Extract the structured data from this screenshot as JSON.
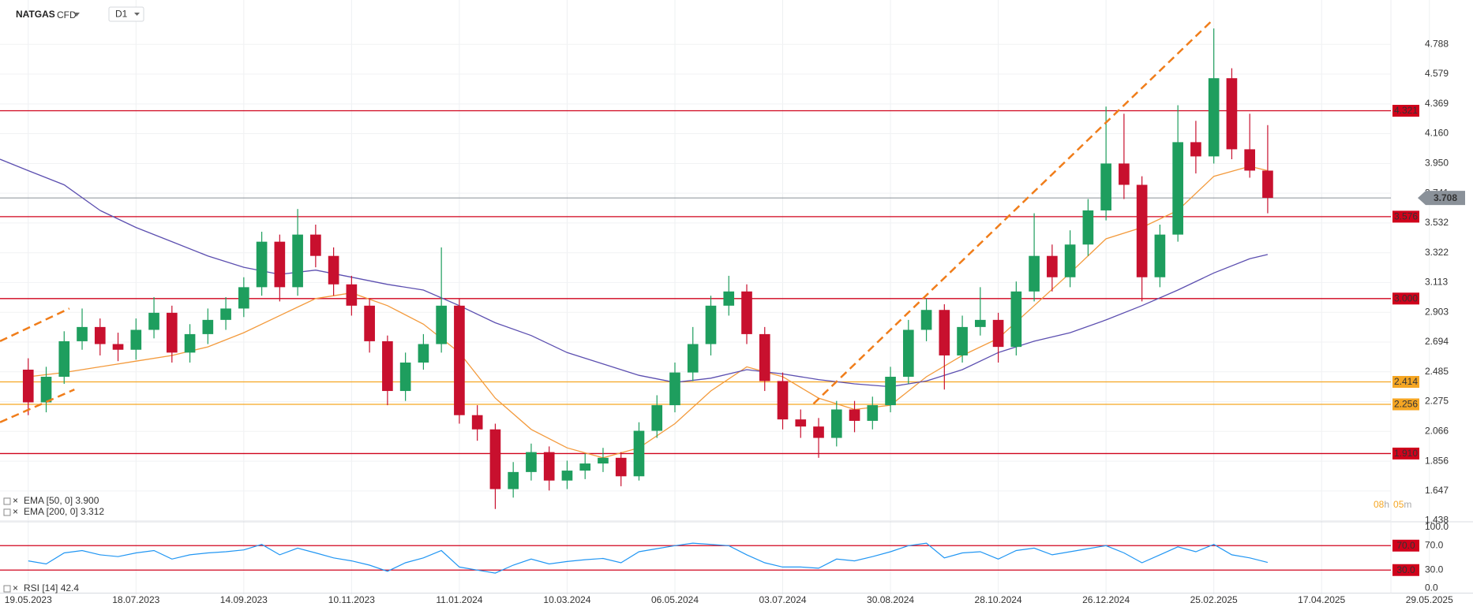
{
  "header": {
    "symbol": "NATGAS",
    "instrument": "CFD",
    "interval": "D1"
  },
  "countdown": {
    "hours": "08",
    "hours_unit": "h",
    "minutes": "05",
    "minutes_unit": "m"
  },
  "chart_data": {
    "type": "candlestick",
    "up_color": "#1e9e5e",
    "down_color": "#c8102e",
    "x": [
      0,
      7,
      14,
      21,
      28,
      35,
      42,
      49,
      56,
      63,
      70,
      77,
      84,
      91,
      98,
      105,
      112,
      119,
      126,
      133,
      140,
      147,
      154,
      161,
      168,
      175,
      182,
      189,
      196,
      203,
      210,
      217,
      224,
      231,
      238,
      245,
      252,
      259,
      266,
      273,
      280,
      287,
      294,
      301,
      308,
      315,
      322,
      329,
      336,
      343,
      350,
      357,
      364,
      371,
      378,
      385,
      392,
      399,
      406,
      413,
      420,
      427,
      434,
      441,
      448,
      455,
      462,
      469,
      476,
      483
    ],
    "open": [
      2.5,
      2.27,
      2.45,
      2.7,
      2.8,
      2.68,
      2.64,
      2.78,
      2.9,
      2.62,
      2.75,
      2.85,
      2.93,
      3.08,
      3.4,
      3.08,
      3.45,
      3.3,
      3.1,
      2.95,
      2.7,
      2.35,
      2.55,
      2.68,
      2.95,
      2.18,
      2.08,
      1.66,
      1.78,
      1.92,
      1.72,
      1.79,
      1.84,
      1.88,
      1.75,
      2.07,
      2.25,
      2.48,
      2.68,
      2.95,
      3.05,
      2.75,
      2.42,
      2.15,
      2.1,
      2.02,
      2.22,
      2.14,
      2.25,
      2.45,
      2.78,
      2.92,
      2.6,
      2.8,
      2.85,
      2.66,
      3.05,
      3.3,
      3.15,
      3.38,
      3.62,
      3.95,
      3.8,
      3.15,
      3.45,
      4.1,
      4.0,
      4.55,
      4.05,
      3.9
    ],
    "high": [
      2.58,
      2.52,
      2.77,
      2.93,
      2.86,
      2.76,
      2.86,
      3.01,
      2.95,
      2.82,
      2.93,
      3.01,
      3.15,
      3.47,
      3.45,
      3.63,
      3.52,
      3.36,
      3.16,
      3.0,
      2.74,
      2.62,
      2.75,
      3.36,
      3.0,
      2.25,
      2.12,
      1.85,
      1.98,
      1.96,
      1.86,
      1.91,
      1.95,
      1.92,
      2.13,
      2.32,
      2.55,
      2.8,
      3.02,
      3.16,
      3.1,
      2.8,
      2.48,
      2.22,
      2.16,
      2.28,
      2.28,
      2.31,
      2.52,
      2.85,
      3.0,
      2.96,
      2.88,
      3.08,
      2.9,
      3.12,
      3.6,
      3.38,
      3.48,
      3.7,
      4.35,
      4.3,
      3.86,
      3.52,
      4.36,
      4.25,
      4.9,
      4.62,
      4.3,
      4.22
    ],
    "low": [
      2.18,
      2.2,
      2.4,
      2.64,
      2.6,
      2.56,
      2.57,
      2.72,
      2.55,
      2.55,
      2.68,
      2.78,
      2.87,
      3.02,
      2.98,
      3.02,
      3.22,
      3.02,
      2.88,
      2.62,
      2.25,
      2.28,
      2.5,
      2.62,
      2.12,
      2.0,
      1.52,
      1.6,
      1.72,
      1.65,
      1.66,
      1.73,
      1.78,
      1.68,
      1.72,
      2.02,
      2.2,
      2.42,
      2.6,
      2.88,
      2.68,
      2.35,
      2.08,
      2.02,
      1.88,
      1.96,
      2.06,
      2.08,
      2.2,
      2.4,
      2.7,
      2.36,
      2.55,
      2.74,
      2.55,
      2.6,
      2.98,
      3.05,
      3.08,
      3.3,
      3.55,
      3.7,
      2.98,
      3.08,
      3.4,
      3.88,
      3.95,
      3.98,
      3.85,
      3.6
    ],
    "close": [
      2.27,
      2.45,
      2.7,
      2.8,
      2.68,
      2.64,
      2.78,
      2.9,
      2.62,
      2.75,
      2.85,
      2.93,
      3.08,
      3.4,
      3.08,
      3.45,
      3.3,
      3.1,
      2.95,
      2.7,
      2.35,
      2.55,
      2.68,
      2.95,
      2.18,
      2.08,
      1.66,
      1.78,
      1.92,
      1.72,
      1.79,
      1.84,
      1.88,
      1.75,
      2.07,
      2.25,
      2.48,
      2.68,
      2.95,
      3.05,
      2.75,
      2.42,
      2.15,
      2.1,
      2.02,
      2.22,
      2.14,
      2.25,
      2.45,
      2.78,
      2.92,
      2.6,
      2.8,
      2.85,
      2.66,
      3.05,
      3.3,
      3.15,
      3.38,
      3.62,
      3.95,
      3.8,
      3.15,
      3.45,
      4.1,
      4.0,
      4.55,
      4.05,
      3.9,
      3.708
    ],
    "xlim": [
      -11,
      563
    ],
    "xticks": [
      {
        "value": 0,
        "label": "19.05.2023"
      },
      {
        "value": 42,
        "label": "18.07.2023"
      },
      {
        "value": 84,
        "label": "14.09.2023"
      },
      {
        "value": 126,
        "label": "10.11.2023"
      },
      {
        "value": 168,
        "label": "11.01.2024"
      },
      {
        "value": 210,
        "label": "10.03.2024"
      },
      {
        "value": 252,
        "label": "06.05.2024"
      },
      {
        "value": 294,
        "label": "03.07.2024"
      },
      {
        "value": 336,
        "label": "30.08.2024"
      },
      {
        "value": 378,
        "label": "28.10.2024"
      },
      {
        "value": 420,
        "label": "26.12.2024"
      },
      {
        "value": 462,
        "label": "25.02.2025"
      },
      {
        "value": 504,
        "label": "17.04.2025"
      },
      {
        "value": 546,
        "label": "29.05.2025"
      }
    ],
    "ylim": [
      1.43,
      5.1
    ],
    "yticks": [
      4.788,
      4.579,
      4.369,
      {
        "value": 4.16,
        "label": "4.160"
      },
      {
        "value": 3.95,
        "label": "3.950"
      },
      3.741,
      3.532,
      3.322,
      3.113,
      2.903,
      2.694,
      2.485,
      2.275,
      2.066,
      1.856,
      1.647,
      1.438
    ],
    "grid": true,
    "lines": [
      {
        "name": "EMA [50, 0] 3.900",
        "color": "#f39a3c",
        "x": [
          0,
          14,
          28,
          42,
          56,
          70,
          84,
          98,
          112,
          126,
          140,
          154,
          168,
          182,
          196,
          210,
          224,
          238,
          252,
          266,
          280,
          294,
          308,
          322,
          336,
          350,
          364,
          378,
          392,
          406,
          420,
          434,
          448,
          462,
          476,
          483
        ],
        "values": [
          2.45,
          2.48,
          2.52,
          2.56,
          2.6,
          2.66,
          2.76,
          2.88,
          3.0,
          3.04,
          2.95,
          2.82,
          2.62,
          2.3,
          2.08,
          1.95,
          1.88,
          1.95,
          2.12,
          2.35,
          2.52,
          2.45,
          2.3,
          2.22,
          2.25,
          2.45,
          2.6,
          2.72,
          2.95,
          3.18,
          3.42,
          3.5,
          3.62,
          3.86,
          3.93,
          3.9
        ]
      },
      {
        "name": "EMA [200, 0] 3.312",
        "color": "#5c4fb0",
        "x": [
          -11,
          0,
          14,
          28,
          42,
          56,
          70,
          84,
          98,
          112,
          126,
          140,
          154,
          168,
          182,
          196,
          210,
          224,
          238,
          252,
          266,
          280,
          294,
          308,
          322,
          336,
          350,
          364,
          378,
          392,
          406,
          420,
          434,
          448,
          462,
          476,
          483
        ],
        "values": [
          3.98,
          3.9,
          3.8,
          3.62,
          3.5,
          3.4,
          3.3,
          3.22,
          3.17,
          3.2,
          3.15,
          3.1,
          3.06,
          2.95,
          2.83,
          2.74,
          2.62,
          2.54,
          2.46,
          2.41,
          2.44,
          2.5,
          2.47,
          2.43,
          2.4,
          2.38,
          2.42,
          2.5,
          2.62,
          2.7,
          2.76,
          2.85,
          2.95,
          3.06,
          3.18,
          3.28,
          3.31
        ]
      }
    ],
    "levels": [
      {
        "value": 4.321,
        "label": "4.321",
        "color": "#d0021b"
      },
      {
        "value": 3.576,
        "label": "3.576",
        "color": "#d0021b"
      },
      {
        "value": 3,
        "label": "3.000",
        "color": "#d0021b"
      },
      {
        "value": 2.414,
        "label": "2.414",
        "color": "#f5a623"
      },
      {
        "value": 2.256,
        "label": "2.256",
        "color": "#f5a623"
      },
      {
        "value": 1.91,
        "label": "1.910",
        "color": "#d0021b"
      }
    ],
    "current": {
      "value": 3.708,
      "label": "3.708",
      "color": "#8a9199"
    },
    "trendlines": [
      {
        "color": "#f07d1a",
        "x": [
          -11,
          16
        ],
        "values": [
          2.7,
          2.93
        ]
      },
      {
        "color": "#f07d1a",
        "x": [
          -11,
          18
        ],
        "values": [
          2.13,
          2.36
        ]
      },
      {
        "color": "#f07d1a",
        "x": [
          306,
          461
        ],
        "values": [
          2.26,
          4.95
        ]
      }
    ],
    "rsi": {
      "name": "RSI [14] 42.4",
      "color": "#2196f3",
      "values": [
        45,
        40,
        58,
        62,
        55,
        52,
        58,
        62,
        48,
        55,
        58,
        60,
        63,
        72,
        55,
        66,
        58,
        50,
        45,
        38,
        28,
        42,
        50,
        62,
        35,
        30,
        25,
        38,
        48,
        40,
        44,
        47,
        49,
        42,
        60,
        65,
        70,
        74,
        72,
        70,
        55,
        42,
        35,
        35,
        33,
        48,
        45,
        52,
        60,
        70,
        74,
        50,
        58,
        60,
        48,
        62,
        66,
        55,
        60,
        65,
        70,
        58,
        42,
        55,
        68,
        60,
        72,
        55,
        50,
        42.4
      ],
      "ylim": [
        0,
        100
      ],
      "yticks": [
        {
          "value": 100,
          "label": "100.0"
        },
        {
          "value": 70,
          "label": "70.0"
        },
        {
          "value": 30,
          "label": "30.0"
        },
        {
          "value": 0,
          "label": "0.0"
        }
      ],
      "levels": [
        {
          "value": 70,
          "label": "70.0",
          "color": "#d0021b"
        },
        {
          "value": 30,
          "label": "30.0",
          "color": "#d0021b"
        }
      ]
    }
  }
}
